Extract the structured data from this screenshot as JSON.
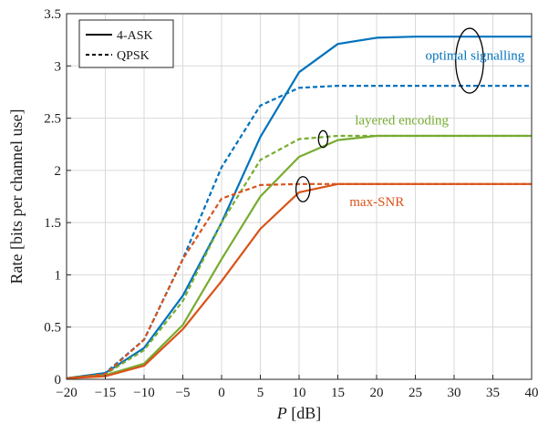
{
  "chart_data": {
    "type": "line",
    "title": "",
    "xlabel": {
      "var": "P",
      "unit": "[dB]"
    },
    "ylabel": "Rate [bits per channel use]",
    "xlim": [
      -20,
      40
    ],
    "ylim": [
      0,
      3.5
    ],
    "xticks": [
      -20,
      -15,
      -10,
      -5,
      0,
      5,
      10,
      15,
      20,
      25,
      30,
      35,
      40
    ],
    "xtick_labels": [
      "−20",
      "−15",
      "−10",
      "−5",
      "0",
      "5",
      "10",
      "15",
      "20",
      "25",
      "30",
      "35",
      "40"
    ],
    "yticks": [
      0,
      0.5,
      1,
      1.5,
      2,
      2.5,
      3,
      3.5
    ],
    "ytick_labels": [
      "0",
      "0.5",
      "1",
      "1.5",
      "2",
      "2.5",
      "3",
      "3.5"
    ],
    "grid": true,
    "legend": {
      "placement": "top-left",
      "entries": [
        {
          "label": "4-ASK",
          "style": "solid"
        },
        {
          "label": "QPSK",
          "style": "dashed"
        }
      ]
    },
    "x": [
      -20,
      -15,
      -10,
      -5,
      0,
      5,
      10,
      15,
      20,
      25,
      30,
      35,
      40
    ],
    "groups": [
      {
        "label": "optimal signalling",
        "color": "#0072bd",
        "ellipse_at": {
          "x": 32,
          "y": 3.05,
          "rx": 1.8,
          "ry": 0.31
        },
        "series": [
          {
            "style": "solid",
            "values": [
              0.01,
              0.06,
              0.3,
              0.8,
              1.5,
              2.32,
              2.94,
              3.21,
              3.27,
              3.28,
              3.28,
              3.28,
              3.28
            ]
          },
          {
            "style": "dashed",
            "values": [
              0.01,
              0.06,
              0.38,
              1.15,
              2.03,
              2.62,
              2.79,
              2.81,
              2.81,
              2.81,
              2.81,
              2.81,
              2.81
            ]
          }
        ]
      },
      {
        "label": "layered encoding",
        "color": "#77ac30",
        "ellipse_at": {
          "x": 13.1,
          "y": 2.3,
          "rx": 0.6,
          "ry": 0.08
        },
        "series": [
          {
            "style": "solid",
            "values": [
              0.01,
              0.04,
              0.15,
              0.52,
              1.15,
              1.75,
              2.13,
              2.29,
              2.33,
              2.33,
              2.33,
              2.33,
              2.33
            ]
          },
          {
            "style": "dashed",
            "values": [
              0.01,
              0.05,
              0.28,
              0.75,
              1.5,
              2.1,
              2.3,
              2.33,
              2.33,
              2.33,
              2.33,
              2.33,
              2.33
            ]
          }
        ]
      },
      {
        "label": "max-SNR",
        "color": "#d95319",
        "ellipse_at": {
          "x": 10.5,
          "y": 1.82,
          "rx": 0.9,
          "ry": 0.12
        },
        "series": [
          {
            "style": "solid",
            "values": [
              0.01,
              0.03,
              0.13,
              0.48,
              0.94,
              1.44,
              1.79,
              1.87,
              1.87,
              1.87,
              1.87,
              1.87,
              1.87
            ]
          },
          {
            "style": "dashed",
            "values": [
              0.01,
              0.05,
              0.38,
              1.15,
              1.73,
              1.86,
              1.87,
              1.87,
              1.87,
              1.87,
              1.87,
              1.87,
              1.87
            ]
          }
        ]
      }
    ],
    "annotations": [
      {
        "text": "optimal signalling",
        "x": 26.3,
        "y": 3.06,
        "color": "#0072bd"
      },
      {
        "text": "layered encoding",
        "x": 17.2,
        "y": 2.44,
        "color": "#77ac30"
      },
      {
        "text": "max-SNR",
        "x": 16.5,
        "y": 1.66,
        "color": "#d95319"
      }
    ]
  }
}
